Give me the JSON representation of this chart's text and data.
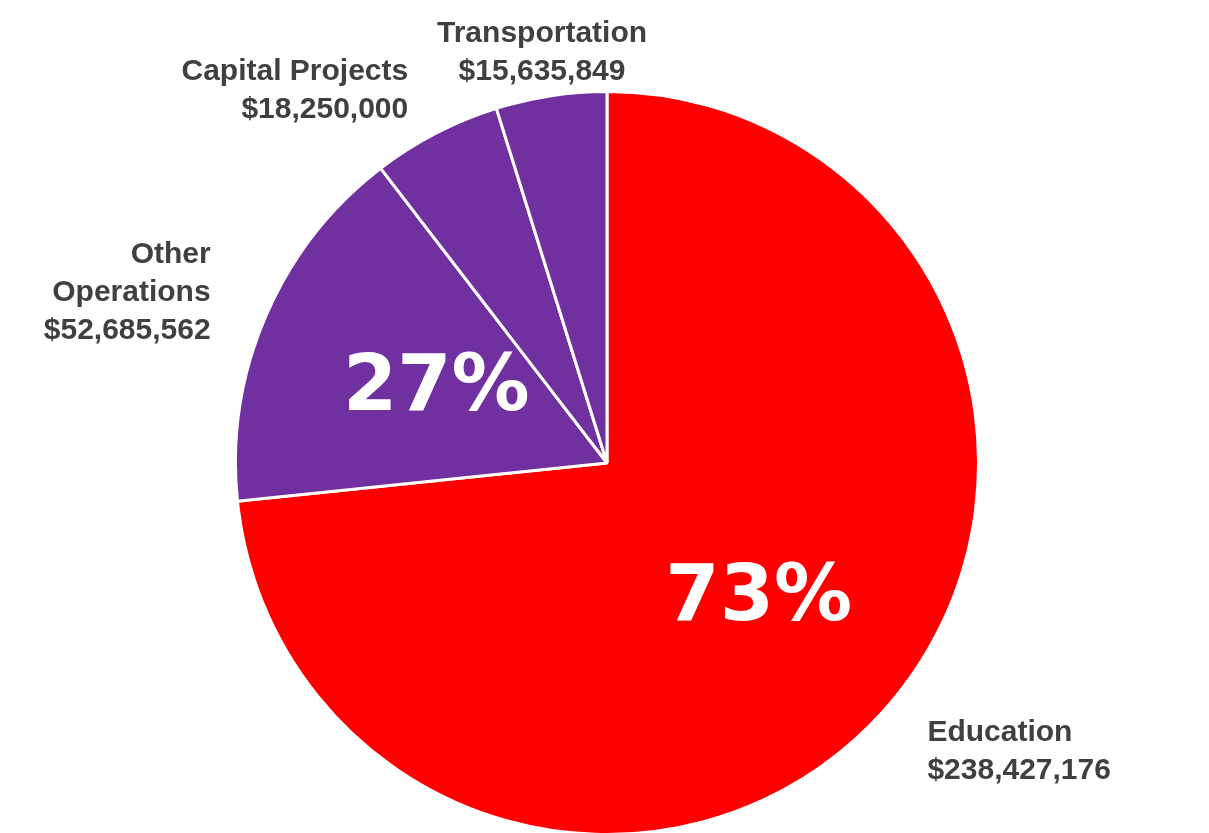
{
  "chart_data": {
    "type": "pie",
    "categories": [
      "Education",
      "Other Operations",
      "Capital Projects",
      "Transportation"
    ],
    "values": [
      238427176,
      52685562,
      18250000,
      15635849
    ],
    "value_labels": [
      "$238,427,176",
      "$52,685,562",
      "$18,250,000",
      "$15,635,849"
    ],
    "colors": [
      "#ff0000",
      "#7030a0",
      "#7030a0",
      "#7030a0"
    ],
    "annotations": [
      "73%",
      "27%"
    ],
    "legend": false
  }
}
